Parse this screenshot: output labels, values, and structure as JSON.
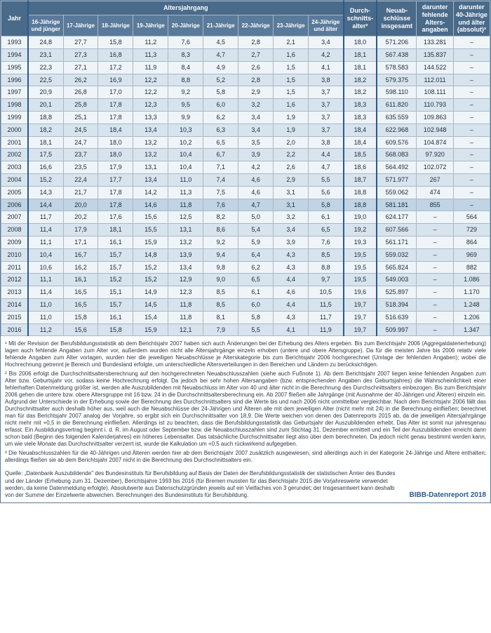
{
  "header": {
    "year": "Jahr",
    "age_group": "Altersjahrgang",
    "avg_age": "Durch­schnitts­alter²",
    "new_contracts": "Neuab­schlüsse insgesamt",
    "missing_age": "darunter fehlende Alters­angaben",
    "over40": "darunter 40-Jährige und älter (absolut)³",
    "cols": [
      "16-Jährige und jünger",
      "17-Jährige",
      "18-Jährige",
      "19-Jährige",
      "20-Jährige",
      "21-Jährige",
      "22-Jährige",
      "23-Jährige",
      "24-Jährige und älter"
    ]
  },
  "rows": [
    {
      "y": "1993",
      "v": [
        "24,8",
        "27,7",
        "15,8",
        "11,2",
        "7,6",
        "4,5",
        "2,8",
        "2,1",
        "3,4"
      ],
      "a": "18,0",
      "n": "571.206",
      "f": "133.281",
      "o": "–"
    },
    {
      "y": "1994",
      "v": [
        "23,1",
        "27,3",
        "16,8",
        "11,3",
        "8,3",
        "4,7",
        "2,7",
        "1,6",
        "4,2"
      ],
      "a": "18,1",
      "n": "567.438",
      "f": "135.837",
      "o": "–"
    },
    {
      "y": "1995",
      "v": [
        "22,3",
        "27,1",
        "17,2",
        "11,9",
        "8,4",
        "4,9",
        "2,6",
        "1,5",
        "4,1"
      ],
      "a": "18,1",
      "n": "578.583",
      "f": "144.522",
      "o": "–"
    },
    {
      "y": "1996",
      "v": [
        "22,5",
        "26,2",
        "16,9",
        "12,2",
        "8,8",
        "5,2",
        "2,8",
        "1,5",
        "3,8"
      ],
      "a": "18,2",
      "n": "579.375",
      "f": "112.011",
      "o": "–"
    },
    {
      "y": "1997",
      "v": [
        "20,9",
        "26,8",
        "17,0",
        "12,2",
        "9,2",
        "5,8",
        "2,9",
        "1,5",
        "3,7"
      ],
      "a": "18,2",
      "n": "598.110",
      "f": "108.111",
      "o": "–"
    },
    {
      "y": "1998",
      "v": [
        "20,1",
        "25,8",
        "17,8",
        "12,3",
        "9,5",
        "6,0",
        "3,2",
        "1,6",
        "3,7"
      ],
      "a": "18,3",
      "n": "611.820",
      "f": "110.793",
      "o": "–"
    },
    {
      "y": "1999",
      "v": [
        "18,8",
        "25,1",
        "17,8",
        "13,3",
        "9,9",
        "6,2",
        "3,4",
        "1,9",
        "3,7"
      ],
      "a": "18,3",
      "n": "635.559",
      "f": "109.863",
      "o": "–"
    },
    {
      "y": "2000",
      "v": [
        "18,2",
        "24,5",
        "18,4",
        "13,4",
        "10,3",
        "6,3",
        "3,4",
        "1,9",
        "3,7"
      ],
      "a": "18,4",
      "n": "622.968",
      "f": "102.948",
      "o": "–"
    },
    {
      "y": "2001",
      "v": [
        "18,1",
        "24,7",
        "18,0",
        "13,2",
        "10,2",
        "6,5",
        "3,5",
        "2,0",
        "3,8"
      ],
      "a": "18,4",
      "n": "609.576",
      "f": "104.874",
      "o": "–"
    },
    {
      "y": "2002",
      "v": [
        "17,5",
        "23,7",
        "18,0",
        "13,2",
        "10,4",
        "6,7",
        "3,9",
        "2,2",
        "4,4"
      ],
      "a": "18,5",
      "n": "568.083",
      "f": "97.920",
      "o": "–"
    },
    {
      "y": "2003",
      "v": [
        "16,6",
        "23,5",
        "17,9",
        "13,1",
        "10,4",
        "7,1",
        "4,2",
        "2,6",
        "4,7"
      ],
      "a": "18,6",
      "n": "564.492",
      "f": "102.072",
      "o": "–"
    },
    {
      "y": "2004",
      "v": [
        "15,2",
        "22,4",
        "17,7",
        "13,4",
        "11,0",
        "7,4",
        "4,6",
        "2,9",
        "5,5"
      ],
      "a": "18,7",
      "n": "571.977",
      "f": "267",
      "o": "–"
    },
    {
      "y": "2005",
      "v": [
        "14,3",
        "21,7",
        "17,8",
        "14,2",
        "11,3",
        "7,5",
        "4,6",
        "3,1",
        "5,6"
      ],
      "a": "18,8",
      "n": "559.062",
      "f": "474",
      "o": "–"
    },
    {
      "y": "2006",
      "v": [
        "14,4",
        "20,0",
        "17,8",
        "14,6",
        "11,8",
        "7,6",
        "4,7",
        "3,1",
        "5,8"
      ],
      "a": "18,8",
      "n": "581.181",
      "f": "855",
      "o": "–",
      "hl": true
    },
    {
      "y": "2007",
      "v": [
        "11,7",
        "20,2",
        "17,6",
        "15,6",
        "12,5",
        "8,2",
        "5,0",
        "3,2",
        "6,1"
      ],
      "a": "19,0",
      "n": "624.177",
      "f": "–",
      "o": "564"
    },
    {
      "y": "2008",
      "v": [
        "11,4",
        "17,9",
        "18,1",
        "15,5",
        "13,1",
        "8,6",
        "5,4",
        "3,4",
        "6,5"
      ],
      "a": "19,2",
      "n": "607.566",
      "f": "–",
      "o": "729"
    },
    {
      "y": "2009",
      "v": [
        "11,1",
        "17,1",
        "16,1",
        "15,9",
        "13,2",
        "9,2",
        "5,9",
        "3,9",
        "7,6"
      ],
      "a": "19,3",
      "n": "561.171",
      "f": "–",
      "o": "864"
    },
    {
      "y": "2010",
      "v": [
        "10,4",
        "16,7",
        "15,7",
        "14,8",
        "13,9",
        "9,4",
        "6,4",
        "4,3",
        "8,5"
      ],
      "a": "19,5",
      "n": "559.032",
      "f": "–",
      "o": "969"
    },
    {
      "y": "2011",
      "v": [
        "10,6",
        "16,2",
        "15,7",
        "15,2",
        "13,4",
        "9,8",
        "6,2",
        "4,3",
        "8,8"
      ],
      "a": "19,5",
      "n": "565.824",
      "f": "–",
      "o": "882"
    },
    {
      "y": "2012",
      "v": [
        "11,1",
        "16,1",
        "15,2",
        "15,2",
        "12,9",
        "9,0",
        "6,5",
        "4,4",
        "9,7"
      ],
      "a": "19,5",
      "n": "549.003",
      "f": "–",
      "o": "1.086"
    },
    {
      "y": "2013",
      "v": [
        "11,4",
        "16,5",
        "15,1",
        "14,9",
        "12,3",
        "8,5",
        "6,1",
        "4,6",
        "10,5"
      ],
      "a": "19,6",
      "n": "525.897",
      "f": "–",
      "o": "1.170"
    },
    {
      "y": "2014",
      "v": [
        "11,0",
        "16,5",
        "15,7",
        "14,5",
        "11,8",
        "8,5",
        "6,0",
        "4,4",
        "11,5"
      ],
      "a": "19,7",
      "n": "518.394",
      "f": "–",
      "o": "1.248"
    },
    {
      "y": "2015",
      "v": [
        "11,0",
        "15,8",
        "16,1",
        "15,4",
        "11,8",
        "8,1",
        "5,8",
        "4,3",
        "11,7"
      ],
      "a": "19,7",
      "n": "516.639",
      "f": "–",
      "o": "1.206"
    },
    {
      "y": "2016",
      "v": [
        "11,2",
        "15,6",
        "15,8",
        "15,9",
        "12,1",
        "7,9",
        "5,5",
        "4,1",
        "11,9"
      ],
      "a": "19,7",
      "n": "509.997",
      "f": "–",
      "o": "1.347"
    }
  ],
  "footnotes": {
    "f1": "¹ Mit der Revision der Berufsbildungsstatistik ab dem Berichtsjahr 2007 haben sich auch Änderungen bei der Erhebung des Alters ergeben. Bis zum Berichtsjahr 2006 (Aggregat­datenerhebung) lagen auch fehlende Angaben zum Alter vor, außerdem wurden nicht alle Altersjahrgänge einzeln erhoben (untere und obere Altersgruppe). Da für die meisten Jahre bis 2006 relativ viele fehlende Angaben zum Alter vorlagen, wurden hier die jeweiligen Neuabschlüsse je Alterskategorie bis zum Berichtsjahr 2006 hochgerechnet (Umlage der feh­lenden Angaben); wobei die Hochrechnung getrennt je Bereich und Bundesland erfolgte, um unterschiedliche Altersverteilungen in den Bereichen und Ländern zu berücksichtigen.",
    "f2": "² Bis 2006 erfolgt die Durchschnittsaltersberechnung auf den hochgerechneten Neuabschlusszahlen (siehe auch Fußnote 1). Ab dem Berichtsjahr 2007 liegen keine fehlenden Angaben zum Alter bzw. Geburtsjahr vor, sodass keine Hochrechnung erfolgt. Da jedoch bei sehr hohen Altersangaben (bzw. entsprechenden Angaben des Geburtsjahres) die Wahrscheinlichkeit einer fehlerhaften Datenmeldung größer ist, werden alle Auszubildenden mit Neuabschluss im Alter von 40 und älter nicht in die Berechnung des Durchschnittsalters einbezogen. Bis zum Berichtsjahr 2006 gehen die untere bzw. obere Altersgruppe mit 16 bzw. 24 in die Durchschnittsaltersberechnung ein. Ab 2007 fließen alle Jahrgänge (mit Ausnahme der 40-Jährigen und Älteren) einzeln ein. Aufgrund der Unterschiede in der Erhebung sowie der Berechnung des Durchschnittsalters sind die Werte bis und nach 2006 nicht unmittelbar vergleichbar. Nach dem Berichtsjahr 2006 fällt das Durchschnittsalter auch deshalb höher aus, weil auch die Neuabschlüsse der 24-Jährigen und Älteren alle mit dem jeweiligen Alter (nicht mehr mit 24) in die Berechnung einfließen; berechnet man für das Berichtsjahr 2007 analog der Vorjahre, so ergibt sich ein Durchschnittsalter von 18,9. Die Werte weichen von denen des Datenreports 2015 ab, da die jeweiligen Altersjahrgänge nicht mehr mit +0,5 in die Berechnung einfließen. Allerdings ist zu beachten, dass die Berufsbildungsstatistik das Geburtsjahr der Auszubildenden erhebt. Das Alter ist somit nur jahresgenau erfasst. Ein Ausbildungsvertrag beginnt i. d. R. im August oder September bzw. die Neuabschlusszahlen sind zum Stichtag 31. Dezember ermittelt und ein Teil der Auszubildenden erreicht dann schon bald (Beginn des folgenden Kalenderjahres) ein höheres Lebensalter. Das tatsächliche Durchschnittsalter liegt also über dem berechneten. Da jedoch nicht genau bestimmt werden kann, um wie viele Monate das Durchschnittsalter verzerrt ist, wurde die Kalkulation um +0,5 auch rückwirkend aufgegeben.",
    "f3": "³ Die Neuabschlusszahlen für die 40-Jährigen und Älteren werden hier ab dem Berichtsjahr 2007 zusätzlich ausgewiesen, sind allerdings auch in der Kategorie 24-Jährige und Ältere enthalten; allerdings fließen sie ab dem Berichtsjahr 2007 nicht in die Berechnung des Durchschnittsalters ein."
  },
  "source": {
    "text": "Quelle: „Datenbank Auszubildende\" des Bundesinstituts für Berufsbildung auf Basis der Daten der Berufsbildungsstatistik der statistischen Ämter des Bundes und der Länder (Erhebung zum 31. Dezember), Berichtsjahre 1993 bis 2016 (für Bremen mussten für das Berichtsjahr 2015 die Vorjahreswerte verwendet werden, da keine Datenmeldung erfolgte). Absolutwerte aus Datenschutzgründen jeweils auf ein Vielfaches von 3 gerundet; der Insgesamtwert kann deshalb von der Summe der Einzelwerte abweichen. Berechnungen des Bundesinstituts für Berufsbildung.",
    "brand": "BIBB-Datenreport 2018"
  },
  "style": {
    "header_bg": "#4a6a8a",
    "subheader_bg": "#5a7a9a",
    "row_light": "#eff4f8",
    "row_dark": "#d8e4ed",
    "row_hl": "#c0d4e4",
    "border": "#a8b8c8",
    "strong_border": "#2a5a8a",
    "font_size_cell": 9,
    "font_size_foot": 8
  }
}
